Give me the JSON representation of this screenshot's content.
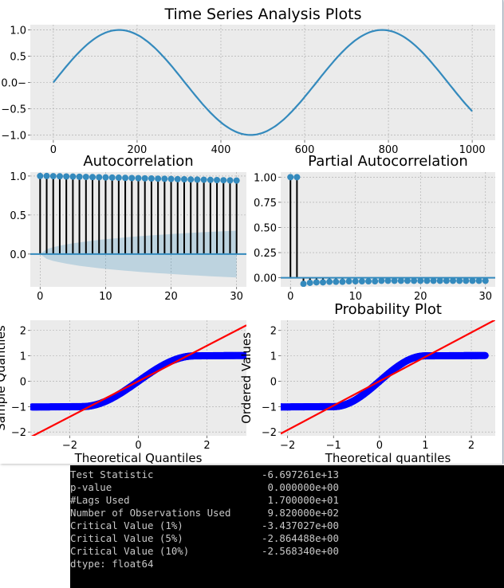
{
  "figure": {
    "suptitle": "Time Series Analysis Plots",
    "colors": {
      "axes_bg": "#ebebeb",
      "grid": "#a8a8a8",
      "line": "#348abd",
      "stem": "#000000",
      "band": "#348abd",
      "qq_points": "#0000ff",
      "qq_line": "#ff0000",
      "text": "#000000"
    }
  },
  "chart_data": [
    {
      "id": "ts",
      "type": "line",
      "title": "",
      "series": [
        {
          "function": "sin(2*pi*x/628)",
          "x_range": [
            0,
            1000
          ]
        }
      ],
      "xlim": [
        -55,
        1055
      ],
      "ylim": [
        -1.1,
        1.1
      ],
      "xticks": [
        0,
        200,
        400,
        600,
        800,
        1000
      ],
      "xtick_labels": [
        "0",
        "200",
        "400",
        "600",
        "800",
        "1000"
      ],
      "yticks": [
        1.0,
        0.5,
        0.0,
        -0.5,
        -1.0
      ],
      "ytick_labels": [
        "1.0",
        "0.5",
        "0.0−",
        "−0.5",
        "−1.0"
      ],
      "grid": true
    },
    {
      "id": "acf",
      "type": "stem",
      "title": "Autocorrelation",
      "x": [
        0,
        1,
        2,
        3,
        4,
        5,
        6,
        7,
        8,
        9,
        10,
        11,
        12,
        13,
        14,
        15,
        16,
        17,
        18,
        19,
        20,
        21,
        22,
        23,
        24,
        25,
        26,
        27,
        28,
        29,
        30
      ],
      "values": [
        1.0,
        1.0,
        0.998,
        0.996,
        0.994,
        0.992,
        0.99,
        0.988,
        0.986,
        0.984,
        0.982,
        0.98,
        0.978,
        0.976,
        0.974,
        0.972,
        0.97,
        0.968,
        0.966,
        0.964,
        0.962,
        0.96,
        0.958,
        0.956,
        0.954,
        0.952,
        0.95,
        0.948,
        0.946,
        0.944,
        0.942
      ],
      "confidence_band": {
        "lower": [
          0,
          -0.062,
          -0.088,
          -0.107,
          -0.123,
          -0.137,
          -0.15,
          -0.161,
          -0.171,
          -0.181,
          -0.19,
          -0.198,
          -0.206,
          -0.213,
          -0.22,
          -0.227,
          -0.233,
          -0.239,
          -0.245,
          -0.25,
          -0.256,
          -0.261,
          -0.266,
          -0.271,
          -0.275,
          -0.28,
          -0.284,
          -0.288,
          -0.292,
          -0.296,
          -0.3
        ]
      },
      "xlim": [
        -1.5,
        31.5
      ],
      "ylim": [
        -0.42,
        1.05
      ],
      "xticks": [
        0,
        10,
        20,
        30
      ],
      "xtick_labels": [
        "0",
        "10",
        "20",
        "30"
      ],
      "yticks": [
        1.0,
        0.5,
        0.0
      ],
      "ytick_labels": [
        "1.0",
        "0.5",
        "0.0"
      ],
      "grid": true
    },
    {
      "id": "pacf",
      "type": "stem",
      "title": "Partial Autocorrelation",
      "x": [
        0,
        1,
        2,
        3,
        4,
        5,
        6,
        7,
        8,
        9,
        10,
        11,
        12,
        13,
        14,
        15,
        16,
        17,
        18,
        19,
        20,
        21,
        22,
        23,
        24,
        25,
        26,
        27,
        28,
        29,
        30
      ],
      "values": [
        1.0,
        1.0,
        -0.06,
        -0.05,
        -0.045,
        -0.045,
        -0.04,
        -0.04,
        -0.04,
        -0.035,
        -0.035,
        -0.035,
        -0.035,
        -0.035,
        -0.03,
        -0.03,
        -0.03,
        -0.03,
        -0.03,
        -0.03,
        -0.03,
        -0.03,
        -0.03,
        -0.03,
        -0.03,
        -0.03,
        -0.03,
        -0.03,
        -0.03,
        -0.03,
        -0.03
      ],
      "xlim": [
        -1.5,
        31.5
      ],
      "ylim": [
        -0.09,
        1.05
      ],
      "xticks": [
        0,
        10,
        20,
        30
      ],
      "xtick_labels": [
        "0",
        "10",
        "20",
        "30"
      ],
      "yticks": [
        1.0,
        0.75,
        0.5,
        0.25,
        0.0
      ],
      "ytick_labels": [
        "1.00",
        "0.75",
        "0.50",
        "0.25",
        "0.00"
      ],
      "grid": true
    },
    {
      "id": "qq",
      "type": "scatter",
      "title": "",
      "xlabel": "Theoretical Quantiles",
      "ylabel": "Sample Quantiles",
      "points_function": "sin(pi*q/(2*1.65)) clipped to [-1,1]",
      "q_range": [
        -3.1,
        3.1
      ],
      "fit_line": {
        "slope": 0.7,
        "intercept": 0.0
      },
      "xlim": [
        -3.15,
        3.15
      ],
      "ylim": [
        -2.15,
        2.4
      ],
      "xticks": [
        -2,
        0,
        2
      ],
      "xtick_labels": [
        "−2",
        "0",
        "2"
      ],
      "yticks": [
        2,
        1,
        0,
        -1,
        -2
      ],
      "ytick_labels": [
        "2",
        "1",
        "0",
        "−1",
        "−2"
      ],
      "grid": true
    },
    {
      "id": "prob",
      "type": "scatter",
      "title": "Probability Plot",
      "xlabel": "Theoretical quantiles",
      "ylabel": "Ordered Values",
      "points_function": "sin(pi*q/(2*1.0)) clipped to [-1,1]",
      "q_range": [
        -2.25,
        2.3
      ],
      "fit_line": {
        "slope": 0.96,
        "intercept": 0.0
      },
      "xlim": [
        -2.15,
        2.52
      ],
      "ylim": [
        -2.15,
        2.4
      ],
      "xticks": [
        -2,
        -1,
        0,
        1,
        2
      ],
      "xtick_labels": [
        "−2",
        "−1",
        "0",
        "1",
        "2"
      ],
      "yticks": [
        2,
        1,
        0,
        -1,
        -2
      ],
      "ytick_labels": [
        "2",
        "1",
        "0",
        "−1",
        "−2"
      ],
      "grid": true
    }
  ],
  "console": {
    "lines": [
      {
        "label": "Test Statistic",
        "value": "-6.697261e+13"
      },
      {
        "label": "p-value",
        "value": " 0.000000e+00"
      },
      {
        "label": "#Lags Used",
        "value": " 1.700000e+01"
      },
      {
        "label": "Number of Observations Used",
        "value": " 9.820000e+02"
      },
      {
        "label": "Critical Value (1%)",
        "value": "-3.437027e+00"
      },
      {
        "label": "Critical Value (5%)",
        "value": "-2.864488e+00"
      },
      {
        "label": "Critical Value (10%)",
        "value": "-2.568340e+00"
      },
      {
        "label": "dtype: float64",
        "value": ""
      }
    ]
  }
}
